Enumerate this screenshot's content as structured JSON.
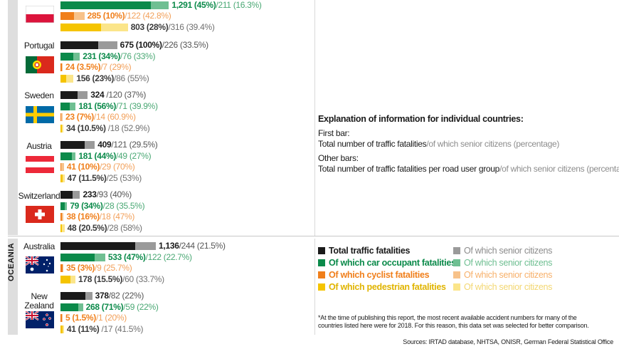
{
  "colors": {
    "total": "#1a1a1a",
    "total_senior": "#9a9a9a",
    "car": "#0b8a4a",
    "car_senior": "#6fbf92",
    "cyclist": "#f07f1b",
    "cyclist_senior": "#f7c28a",
    "pedestrian": "#f5c400",
    "pedestrian_senior": "#fbe58a"
  },
  "region_label": "OCEANIA",
  "explanation": {
    "title": "Explanation of information for individual countries:",
    "first_bar_heading": "First bar:",
    "first_bar_main": "Total number of traffic fatalities",
    "first_bar_grey": "/of which senior citizens (percentage)",
    "other_bars_heading": "Other bars:",
    "other_bars_main": "Total number of traffic fatalities per road user group",
    "other_bars_grey": "/of which senior citizens (percentage)"
  },
  "legend": {
    "total": "Total traffic fatalities",
    "car": "Of which car occupant fatalities",
    "cyclist": "Of which cyclist fatalities",
    "pedestrian": "Of which pedestrian fatalities",
    "senior": "Of which senior citizens"
  },
  "footnote": "*At the time of publishing this report, the most recent available accident numbers for many of the countries listed here were for 2018. For this reason, this data set was selected for better comparison.",
  "source": "Sources: IRTAD database, NHTSA, ONISR, German Federal Statistical Office",
  "chart_data": {
    "type": "bar",
    "countries": [
      {
        "name": "Poland",
        "name_lines": [],
        "flag": "poland",
        "rows": [
          {
            "type": "car",
            "value": 1291,
            "senior": 211,
            "main_text": "1,291 (45%)",
            "senior_text": "/211 (16.3%)"
          },
          {
            "type": "cyclist",
            "value": 285,
            "senior": 122,
            "main_text": "285 (10%)",
            "senior_text": "/122 (42.8%)"
          },
          {
            "type": "pedestrian",
            "value": 803,
            "senior": 316,
            "main_text": "803 (28%)",
            "senior_text": "/316 (39.4%)"
          }
        ]
      },
      {
        "name": "Portugal",
        "name_lines": [
          "Portugal"
        ],
        "flag": "portugal",
        "rows": [
          {
            "type": "total",
            "value": 675,
            "senior": 226,
            "main_text": "675 (100%)",
            "senior_text": "/226 (33.5%)"
          },
          {
            "type": "car",
            "value": 231,
            "senior": 76,
            "main_text": "231 (34%)",
            "senior_text": "/76 (33%)"
          },
          {
            "type": "cyclist",
            "value": 24,
            "senior": 7,
            "main_text": "24 (3.5%)",
            "senior_text": "/7 (29%)"
          },
          {
            "type": "pedestrian",
            "value": 156,
            "senior": 86,
            "main_text": "156 (23%)",
            "senior_text": "/86 (55%)"
          }
        ]
      },
      {
        "name": "Sweden",
        "name_lines": [
          "Sweden"
        ],
        "flag": "sweden",
        "rows": [
          {
            "type": "total",
            "value": 324,
            "senior": 120,
            "main_text": "324",
            "senior_text": " /120 (37%)"
          },
          {
            "type": "car",
            "value": 181,
            "senior": 71,
            "main_text": "181 (56%)",
            "senior_text": "/71 (39.9%)"
          },
          {
            "type": "cyclist",
            "value": 23,
            "senior": 14,
            "main_text": "23 (7%)",
            "senior_text": "/14 (60.9%)"
          },
          {
            "type": "pedestrian",
            "value": 34,
            "senior": 18,
            "main_text": "34 (10.5%)",
            "senior_text": " /18 (52.9%)"
          }
        ]
      },
      {
        "name": "Austria",
        "name_lines": [
          "Austria"
        ],
        "flag": "austria",
        "rows": [
          {
            "type": "total",
            "value": 409,
            "senior": 121,
            "main_text": "409",
            "senior_text": "/121 (29.5%)"
          },
          {
            "type": "car",
            "value": 181,
            "senior": 49,
            "main_text": "181 (44%)",
            "senior_text": "/49 (27%)"
          },
          {
            "type": "cyclist",
            "value": 41,
            "senior": 29,
            "main_text": "41 (10%)",
            "senior_text": "/29 (70%)"
          },
          {
            "type": "pedestrian",
            "value": 47,
            "senior": 25,
            "main_text": "47 (11.5%)",
            "senior_text": "/25 (53%)"
          }
        ]
      },
      {
        "name": "Switzerland",
        "name_lines": [
          "Switzerland"
        ],
        "flag": "switzerland",
        "rows": [
          {
            "type": "total",
            "value": 233,
            "senior": 93,
            "main_text": "233",
            "senior_text": "/93 (40%)"
          },
          {
            "type": "car",
            "value": 79,
            "senior": 28,
            "main_text": "79 (34%)",
            "senior_text": "/28 (35.5%)"
          },
          {
            "type": "cyclist",
            "value": 38,
            "senior": 18,
            "main_text": "38 (16%)",
            "senior_text": "/18 (47%)"
          },
          {
            "type": "pedestrian",
            "value": 48,
            "senior": 28,
            "main_text": "48 (20.5%)",
            "senior_text": "/28 (58%)"
          }
        ]
      },
      {
        "name": "Australia",
        "name_lines": [
          "Australia"
        ],
        "flag": "australia",
        "rows": [
          {
            "type": "total",
            "value": 1136,
            "senior": 244,
            "main_text": "1,136",
            "senior_text": "/244 (21.5%)"
          },
          {
            "type": "car",
            "value": 533,
            "senior": 122,
            "main_text": "533 (47%)",
            "senior_text": "/122 (22.7%)"
          },
          {
            "type": "cyclist",
            "value": 35,
            "senior": 9,
            "main_text": "35 (3%)",
            "senior_text": "/9 (25.7%)"
          },
          {
            "type": "pedestrian",
            "value": 178,
            "senior": 60,
            "main_text": "178 (15.5%)",
            "senior_text": "/60 (33.7%)"
          }
        ]
      },
      {
        "name": "New Zealand",
        "name_lines": [
          "New",
          "Zealand"
        ],
        "flag": "new_zealand",
        "rows": [
          {
            "type": "total",
            "value": 378,
            "senior": 82,
            "main_text": "378",
            "senior_text": "/82 (22%)"
          },
          {
            "type": "car",
            "value": 268,
            "senior": 59,
            "main_text": "268 (71%)",
            "senior_text": "/59 (22%)"
          },
          {
            "type": "cyclist",
            "value": 5,
            "senior": 1,
            "main_text": "5 (1.5%)",
            "senior_text": "/1 (20%)"
          },
          {
            "type": "pedestrian",
            "value": 41,
            "senior": 17,
            "main_text": "41 (11%)",
            "senior_text": " /17 (41.5%)"
          }
        ]
      }
    ]
  }
}
